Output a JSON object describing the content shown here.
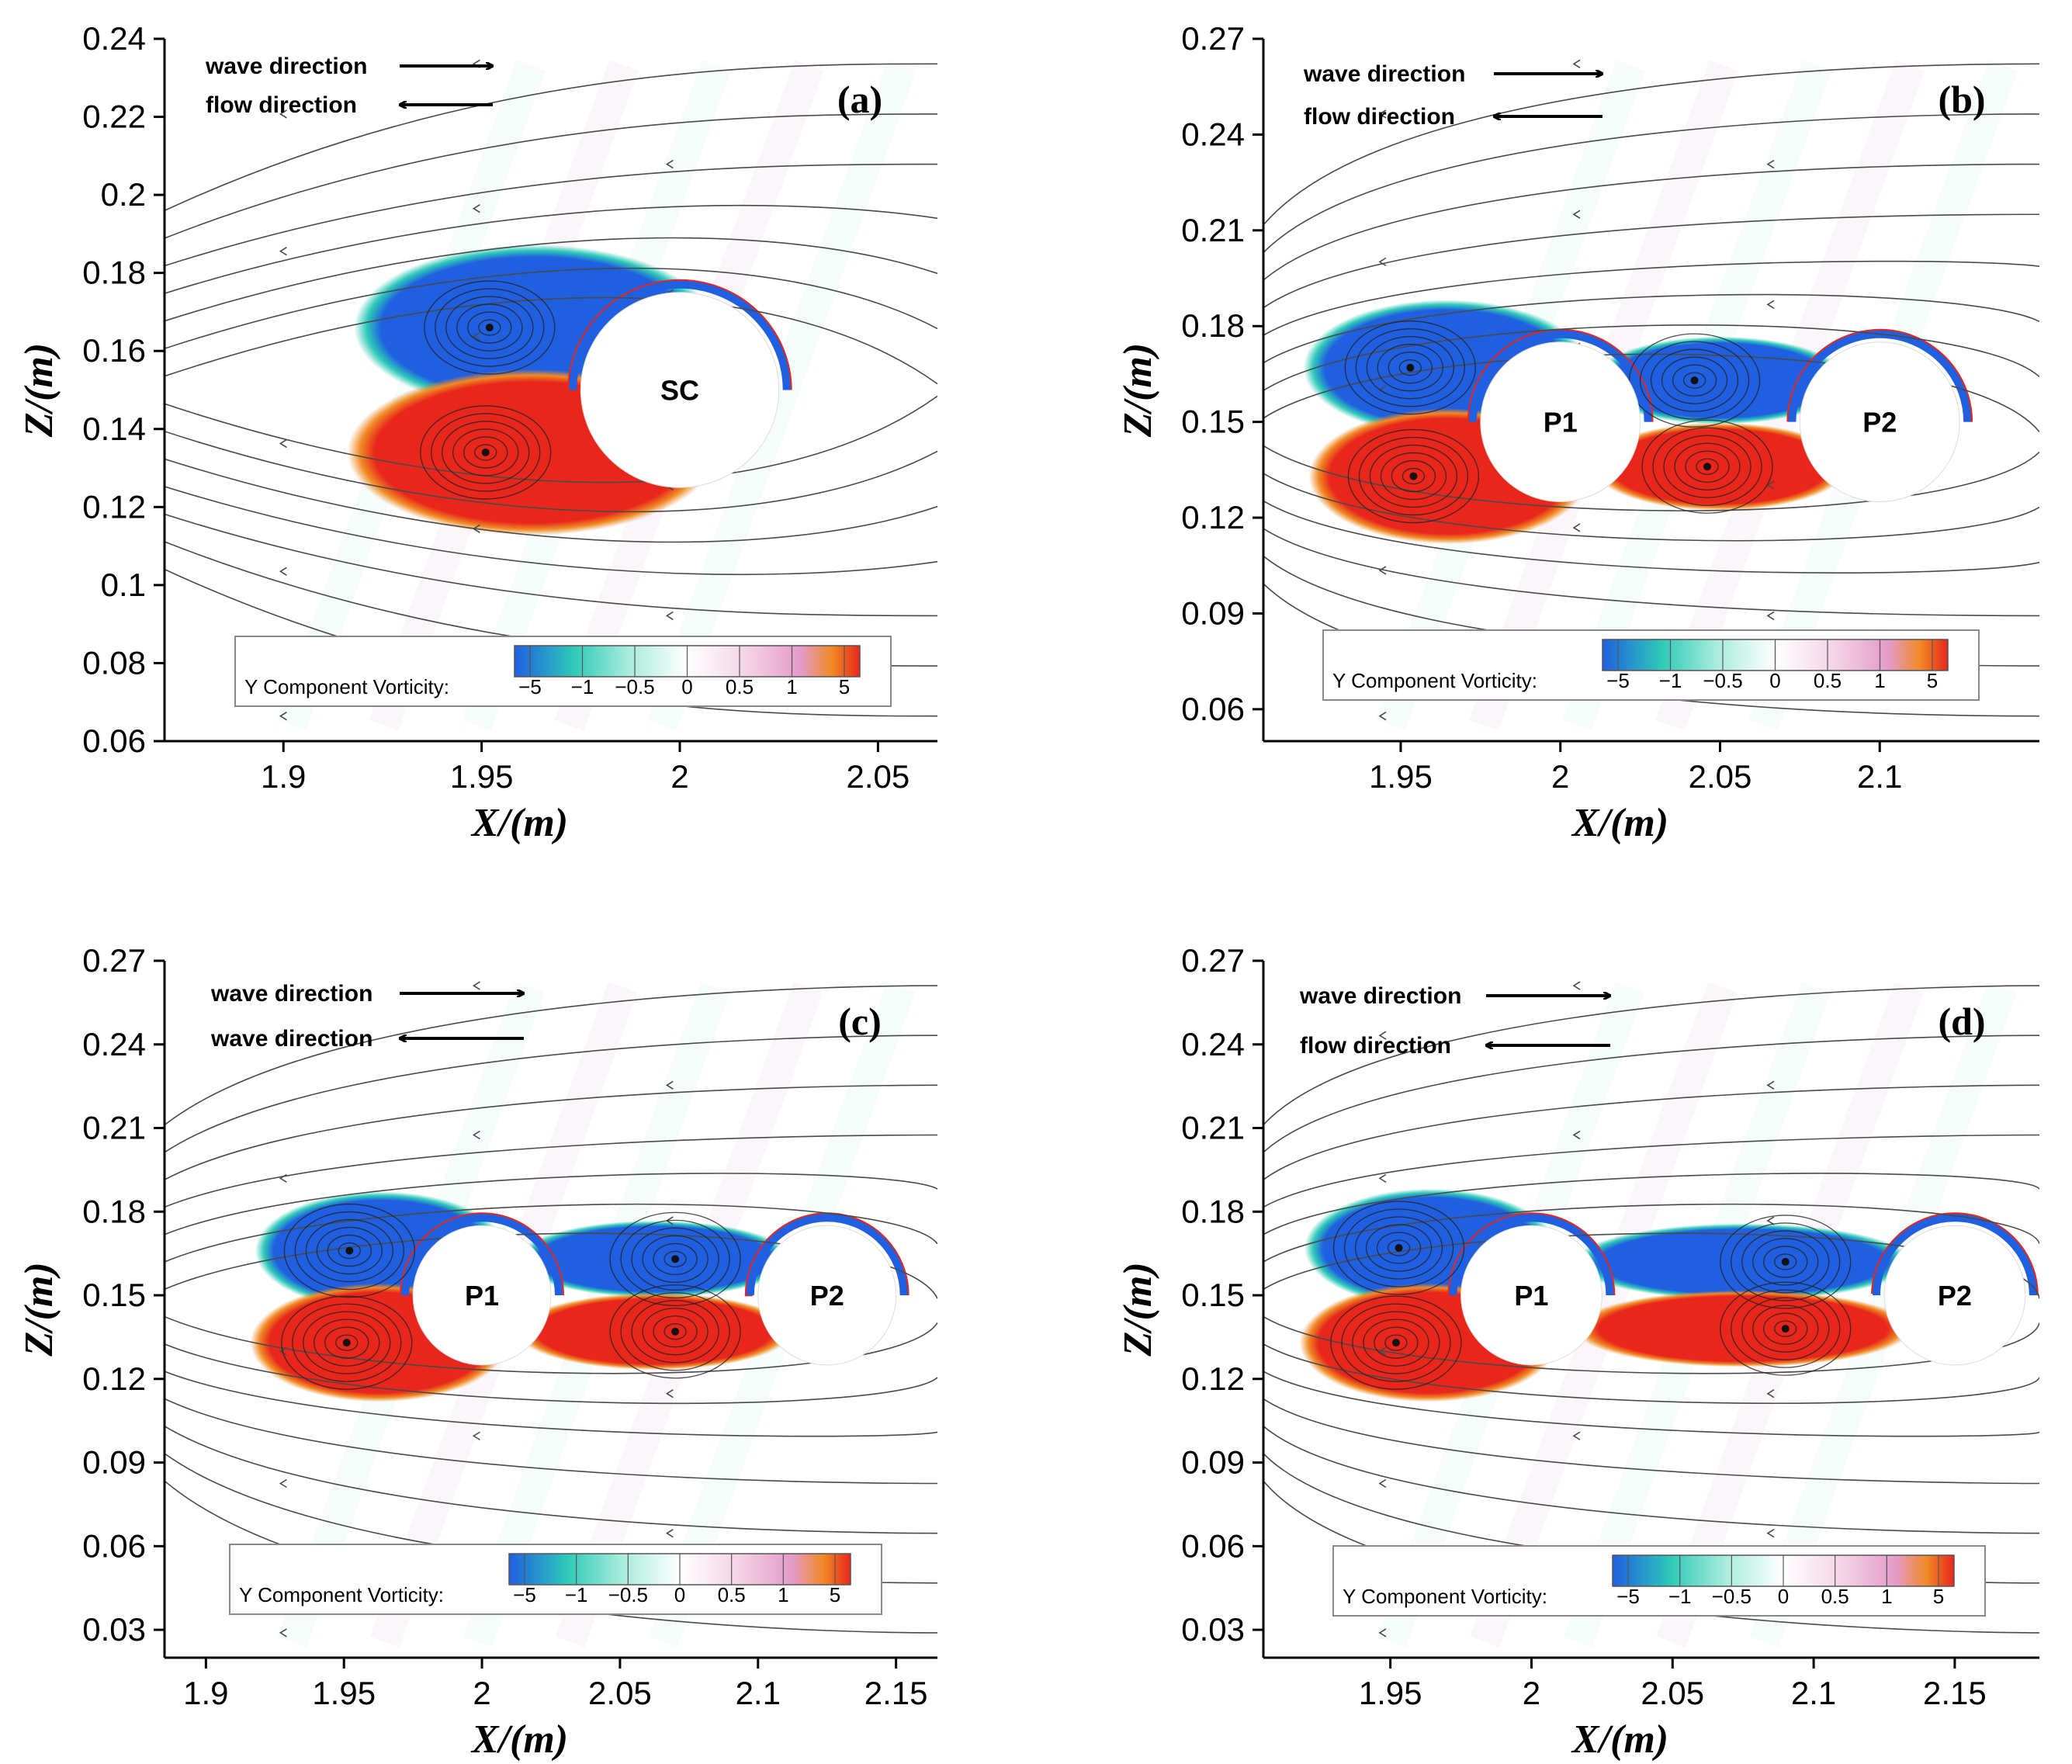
{
  "chart_data": [
    {
      "type": "contour",
      "panel_label": "(a)",
      "xlabel": "X/(m)",
      "ylabel": "Z/(m)",
      "xlim": [
        1.87,
        2.065
      ],
      "ylim": [
        0.06,
        0.24
      ],
      "xticks": [
        1.9,
        1.95,
        2,
        2.05
      ],
      "xtick_labels": [
        "1.9",
        "1.95",
        "2",
        "2.05"
      ],
      "yticks": [
        0.06,
        0.08,
        0.1,
        0.12,
        0.14,
        0.16,
        0.18,
        0.2,
        0.22,
        0.24
      ],
      "ytick_labels": [
        "0.06",
        "0.08",
        "0.1",
        "0.12",
        "0.14",
        "0.16",
        "0.18",
        "0.2",
        "0.22",
        "0.24"
      ],
      "annotations": [
        "wave direction",
        "flow direction"
      ],
      "cylinders": [
        {
          "label": "SC",
          "x": 2.0,
          "z": 0.15,
          "r": 0.025
        }
      ],
      "vortices": [
        {
          "x": 1.952,
          "z": 0.166,
          "sign": -1
        },
        {
          "x": 1.951,
          "z": 0.134,
          "sign": 1
        }
      ],
      "legend": {
        "title": "Y Component Vorticity:",
        "levels": [
          "−5",
          "−1",
          "−0.5",
          "0",
          "0.5",
          "1",
          "5"
        ]
      }
    },
    {
      "type": "contour",
      "panel_label": "(b)",
      "xlabel": "X/(m)",
      "ylabel": "Z/(m)",
      "xlim": [
        1.907,
        2.15
      ],
      "ylim": [
        0.05,
        0.27
      ],
      "xticks": [
        1.95,
        2,
        2.05,
        2.1
      ],
      "xtick_labels": [
        "1.95",
        "2",
        "2.05",
        "2.1"
      ],
      "yticks": [
        0.06,
        0.09,
        0.12,
        0.15,
        0.18,
        0.21,
        0.24,
        0.27
      ],
      "ytick_labels": [
        "0.06",
        "0.09",
        "0.12",
        "0.15",
        "0.18",
        "0.21",
        "0.24",
        "0.27"
      ],
      "annotations": [
        "wave direction",
        "flow direction"
      ],
      "cylinders": [
        {
          "label": "P1",
          "x": 2.0,
          "z": 0.15,
          "r": 0.025
        },
        {
          "label": "P2",
          "x": 2.1,
          "z": 0.15,
          "r": 0.025
        }
      ],
      "vortices": [
        {
          "x": 1.953,
          "z": 0.167,
          "sign": -1
        },
        {
          "x": 1.954,
          "z": 0.133,
          "sign": 1
        },
        {
          "x": 2.042,
          "z": 0.163,
          "sign": -1
        },
        {
          "x": 2.046,
          "z": 0.136,
          "sign": 1
        }
      ],
      "legend": {
        "title": "Y Component Vorticity:",
        "levels": [
          "−5",
          "−1",
          "−0.5",
          "0",
          "0.5",
          "1",
          "5"
        ]
      }
    },
    {
      "type": "contour",
      "panel_label": "(c)",
      "xlabel": "X/(m)",
      "ylabel": "Z/(m)",
      "xlim": [
        1.885,
        2.165
      ],
      "ylim": [
        0.02,
        0.27
      ],
      "xticks": [
        1.9,
        1.95,
        2,
        2.05,
        2.1,
        2.15
      ],
      "xtick_labels": [
        "1.9",
        "1.95",
        "2",
        "2.05",
        "2.1",
        "2.15"
      ],
      "yticks": [
        0.03,
        0.06,
        0.09,
        0.12,
        0.15,
        0.18,
        0.21,
        0.24,
        0.27
      ],
      "ytick_labels": [
        "0.03",
        "0.06",
        "0.09",
        "0.12",
        "0.15",
        "0.18",
        "0.21",
        "0.24",
        "0.27"
      ],
      "annotations": [
        "wave direction",
        "wave direction"
      ],
      "cylinders": [
        {
          "label": "P1",
          "x": 2.0,
          "z": 0.15,
          "r": 0.025
        },
        {
          "label": "P2",
          "x": 2.125,
          "z": 0.15,
          "r": 0.025
        }
      ],
      "vortices": [
        {
          "x": 1.952,
          "z": 0.166,
          "sign": -1
        },
        {
          "x": 1.951,
          "z": 0.133,
          "sign": 1
        },
        {
          "x": 2.07,
          "z": 0.163,
          "sign": -1
        },
        {
          "x": 2.07,
          "z": 0.137,
          "sign": 1
        }
      ],
      "legend": {
        "title": "Y Component Vorticity:",
        "levels": [
          "−5",
          "−1",
          "−0.5",
          "0",
          "0.5",
          "1",
          "5"
        ]
      }
    },
    {
      "type": "contour",
      "panel_label": "(d)",
      "xlabel": "X/(m)",
      "ylabel": "Z/(m)",
      "xlim": [
        1.905,
        2.18
      ],
      "ylim": [
        0.02,
        0.27
      ],
      "xticks": [
        1.95,
        2,
        2.05,
        2.1,
        2.15
      ],
      "xtick_labels": [
        "1.95",
        "2",
        "2.05",
        "2.1",
        "2.15"
      ],
      "yticks": [
        0.03,
        0.06,
        0.09,
        0.12,
        0.15,
        0.18,
        0.21,
        0.24,
        0.27
      ],
      "ytick_labels": [
        "0.03",
        "0.06",
        "0.09",
        "0.12",
        "0.15",
        "0.18",
        "0.21",
        "0.24",
        "0.27"
      ],
      "annotations": [
        "wave direction",
        "flow direction"
      ],
      "cylinders": [
        {
          "label": "P1",
          "x": 2.0,
          "z": 0.15,
          "r": 0.025
        },
        {
          "label": "P2",
          "x": 2.15,
          "z": 0.15,
          "r": 0.025
        }
      ],
      "vortices": [
        {
          "x": 1.953,
          "z": 0.167,
          "sign": -1
        },
        {
          "x": 1.952,
          "z": 0.133,
          "sign": 1
        },
        {
          "x": 2.09,
          "z": 0.162,
          "sign": -1
        },
        {
          "x": 2.09,
          "z": 0.138,
          "sign": 1
        }
      ],
      "legend": {
        "title": "Y Component Vorticity:",
        "levels": [
          "−5",
          "−1",
          "−0.5",
          "0",
          "0.5",
          "1",
          "5"
        ]
      }
    }
  ],
  "colors": {
    "negative_strong": "#1f5fe0",
    "negative_mid": "#2ec9b8",
    "negative_weak": "#a8ecdc",
    "zero": "#ffffff",
    "positive_weak": "#f4d4e6",
    "positive_mid": "#e49ac8",
    "positive_strong": "#e8261b",
    "positive_peak": "#f08a24",
    "streamline": "#4a4a4a",
    "cylinder_fill": "#ffffff"
  }
}
